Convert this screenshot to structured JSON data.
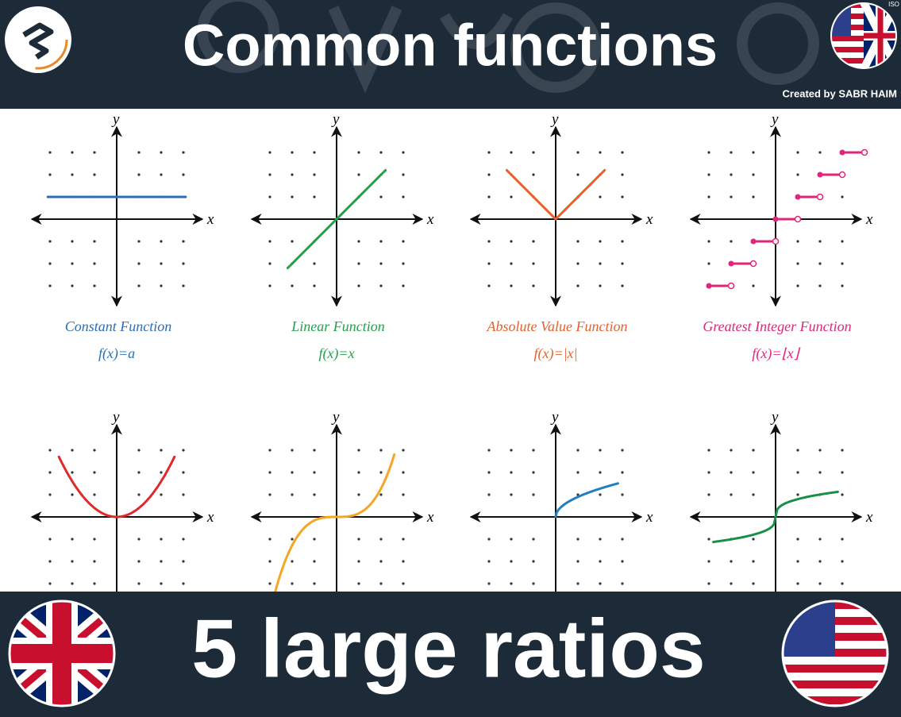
{
  "header": {
    "title": "Common functions",
    "credit": "Created by SABR HAIM",
    "badge": "ISO"
  },
  "panels": [
    {
      "name": "Constant Function",
      "formula": "f(x)=a",
      "x_label": "x",
      "y_label": "y"
    },
    {
      "name": "Linear Function",
      "formula": "f(x)=x",
      "x_label": "x",
      "y_label": "y"
    },
    {
      "name": "Absolute Value Function",
      "formula": "f(x)=|x|",
      "x_label": "x",
      "y_label": "y"
    },
    {
      "name": "Greatest Integer Function",
      "formula": "f(x)=⌊x⌋",
      "x_label": "x",
      "y_label": "y"
    },
    {
      "x_label": "x",
      "y_label": "y"
    },
    {
      "x_label": "x",
      "y_label": "y"
    },
    {
      "x_label": "x",
      "y_label": "y"
    },
    {
      "x_label": "x",
      "y_label": "y"
    }
  ],
  "footer": {
    "title": "5 large ratios"
  }
}
